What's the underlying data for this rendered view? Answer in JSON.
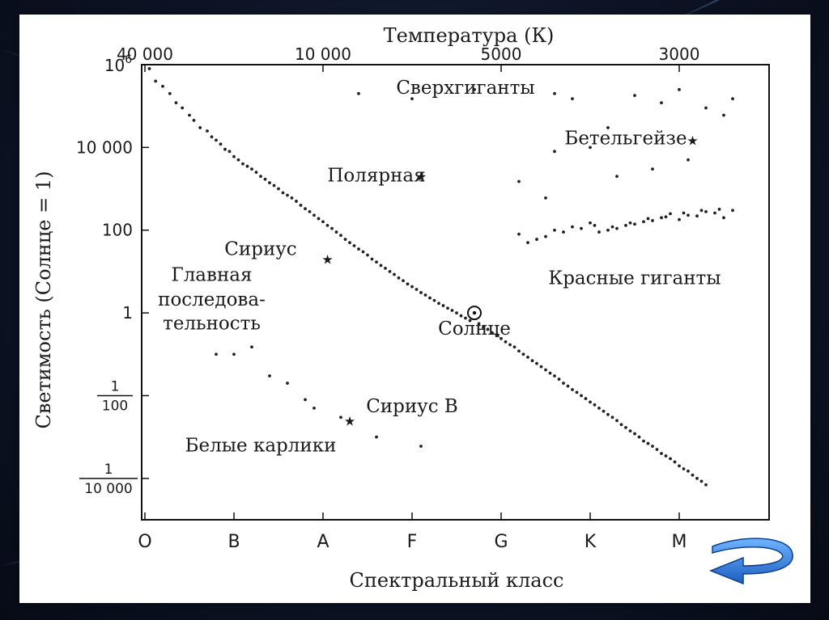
{
  "chart_data": {
    "type": "scatter",
    "title": "",
    "top_axis": {
      "label": "Температура (К)",
      "ticks": [
        {
          "label": "40 000",
          "class_pos": 0.0
        },
        {
          "label": "10 000",
          "class_pos": 2.0
        },
        {
          "label": "5000",
          "class_pos": 4.0
        },
        {
          "label": "3000",
          "class_pos": 6.0
        }
      ]
    },
    "xlabel": "Спектральный класс",
    "ylabel": "Светимость (Солнце = 1)",
    "x_categories": [
      "O",
      "B",
      "A",
      "F",
      "G",
      "K",
      "M"
    ],
    "x_range": [
      0,
      7
    ],
    "y_scale": "log",
    "y_range": [
      1e-05,
      1000000
    ],
    "y_ticks": [
      {
        "value": 1000000,
        "base": "10",
        "exp": "6"
      },
      {
        "value": 10000,
        "label": "10 000"
      },
      {
        "value": 100,
        "label": "100"
      },
      {
        "value": 1,
        "label": "1"
      },
      {
        "value": 0.01,
        "num": "1",
        "den": "100"
      },
      {
        "value": 0.0001,
        "num": "1",
        "den": "10 000"
      }
    ],
    "grid": false,
    "legend": "none",
    "labels": [
      {
        "text": "Сверхгиганты",
        "x": 3.6,
        "y": 200000
      },
      {
        "text": "Бетельгейзе",
        "x": 5.4,
        "y": 12000
      },
      {
        "text": "Полярная",
        "x": 2.6,
        "y": 1500
      },
      {
        "text": "Сириус",
        "x": 1.3,
        "y": 25
      },
      {
        "text": "Главная",
        "x": 0.75,
        "y": 6
      },
      {
        "text": "последова-",
        "x": 0.75,
        "y": 1.5
      },
      {
        "text": "тельность",
        "x": 0.75,
        "y": 0.4
      },
      {
        "text": "Красные гиганты",
        "x": 5.5,
        "y": 5
      },
      {
        "text": "Солнце",
        "x": 3.7,
        "y": 0.3
      },
      {
        "text": "Сириус B",
        "x": 3.0,
        "y": 0.004
      },
      {
        "text": "Белые карлики",
        "x": 1.3,
        "y": 0.00045
      }
    ],
    "named_stars": [
      {
        "name": "Бетельгейзе",
        "x": 6.15,
        "y": 15000,
        "symbol": "star"
      },
      {
        "name": "Полярная",
        "x": 3.1,
        "y": 2000,
        "symbol": "star"
      },
      {
        "name": "Сириус",
        "x": 2.05,
        "y": 20,
        "symbol": "star"
      },
      {
        "name": "Сириус B",
        "x": 2.3,
        "y": 0.0025,
        "symbol": "star"
      },
      {
        "name": "Солнце",
        "x": 3.7,
        "y": 1,
        "symbol": "sun"
      }
    ],
    "series": [
      {
        "group": "main-sequence",
        "points": [
          [
            0.05,
            800000
          ],
          [
            0.12,
            400000
          ],
          [
            0.2,
            300000
          ],
          [
            0.28,
            200000
          ],
          [
            0.35,
            120000
          ],
          [
            0.42,
            90000
          ],
          [
            0.5,
            60000
          ],
          [
            0.55,
            45000
          ],
          [
            0.62,
            30000
          ],
          [
            0.7,
            25000
          ],
          [
            0.75,
            18000
          ],
          [
            0.8,
            15000
          ],
          [
            0.85,
            12000
          ],
          [
            0.9,
            9000
          ],
          [
            0.95,
            8000
          ],
          [
            1.0,
            6000
          ],
          [
            1.05,
            5000
          ],
          [
            1.1,
            4000
          ],
          [
            1.15,
            3500
          ],
          [
            1.2,
            3000
          ],
          [
            1.25,
            2500
          ],
          [
            1.3,
            2000
          ],
          [
            1.35,
            1700
          ],
          [
            1.4,
            1400
          ],
          [
            1.45,
            1200
          ],
          [
            1.5,
            1000
          ],
          [
            1.55,
            800
          ],
          [
            1.6,
            700
          ],
          [
            1.65,
            600
          ],
          [
            1.7,
            500
          ],
          [
            1.75,
            400
          ],
          [
            1.8,
            330
          ],
          [
            1.85,
            280
          ],
          [
            1.9,
            230
          ],
          [
            1.95,
            190
          ],
          [
            2.0,
            160
          ],
          [
            2.05,
            130
          ],
          [
            2.1,
            110
          ],
          [
            2.15,
            90
          ],
          [
            2.2,
            75
          ],
          [
            2.25,
            60
          ],
          [
            2.3,
            50
          ],
          [
            2.35,
            42
          ],
          [
            2.4,
            35
          ],
          [
            2.45,
            30
          ],
          [
            2.5,
            25
          ],
          [
            2.55,
            20
          ],
          [
            2.6,
            17
          ],
          [
            2.65,
            14
          ],
          [
            2.7,
            12
          ],
          [
            2.75,
            10
          ],
          [
            2.8,
            8.5
          ],
          [
            2.85,
            7
          ],
          [
            2.9,
            6
          ],
          [
            2.95,
            5
          ],
          [
            3.0,
            4.3
          ],
          [
            3.05,
            3.7
          ],
          [
            3.1,
            3.1
          ],
          [
            3.15,
            2.7
          ],
          [
            3.2,
            2.3
          ],
          [
            3.25,
            2.0
          ],
          [
            3.3,
            1.7
          ],
          [
            3.35,
            1.5
          ],
          [
            3.4,
            1.3
          ],
          [
            3.45,
            1.15
          ],
          [
            3.5,
            1.0
          ],
          [
            3.55,
            0.85
          ],
          [
            3.6,
            0.75
          ],
          [
            3.65,
            0.65
          ],
          [
            3.75,
            0.55
          ],
          [
            3.8,
            0.45
          ],
          [
            3.85,
            0.4
          ],
          [
            3.9,
            0.33
          ],
          [
            3.95,
            0.28
          ],
          [
            4.0,
            0.24
          ],
          [
            4.05,
            0.2
          ],
          [
            4.1,
            0.17
          ],
          [
            4.15,
            0.15
          ],
          [
            4.2,
            0.12
          ],
          [
            4.25,
            0.1
          ],
          [
            4.3,
            0.085
          ],
          [
            4.35,
            0.07
          ],
          [
            4.4,
            0.06
          ],
          [
            4.45,
            0.05
          ],
          [
            4.5,
            0.042
          ],
          [
            4.55,
            0.035
          ],
          [
            4.6,
            0.03
          ],
          [
            4.65,
            0.025
          ],
          [
            4.7,
            0.02
          ],
          [
            4.75,
            0.017
          ],
          [
            4.8,
            0.014
          ],
          [
            4.85,
            0.012
          ],
          [
            4.9,
            0.01
          ],
          [
            4.95,
            0.0085
          ],
          [
            5.0,
            0.007
          ],
          [
            5.05,
            0.006
          ],
          [
            5.1,
            0.005
          ],
          [
            5.15,
            0.0042
          ],
          [
            5.2,
            0.0035
          ],
          [
            5.25,
            0.003
          ],
          [
            5.3,
            0.0025
          ],
          [
            5.35,
            0.002
          ],
          [
            5.4,
            0.0017
          ],
          [
            5.45,
            0.0014
          ],
          [
            5.5,
            0.0012
          ],
          [
            5.55,
            0.001
          ],
          [
            5.6,
            0.0008
          ],
          [
            5.65,
            0.0007
          ],
          [
            5.7,
            0.0006
          ],
          [
            5.75,
            0.0005
          ],
          [
            5.8,
            0.0004
          ],
          [
            5.85,
            0.00035
          ],
          [
            5.9,
            0.0003
          ],
          [
            5.95,
            0.00025
          ],
          [
            6.0,
            0.0002
          ],
          [
            6.05,
            0.00017
          ],
          [
            6.1,
            0.00015
          ],
          [
            6.15,
            0.00012
          ],
          [
            6.2,
            0.0001
          ],
          [
            6.25,
            8.5e-05
          ],
          [
            6.3,
            7e-05
          ]
        ]
      },
      {
        "group": "giants",
        "points": [
          [
            4.2,
            80
          ],
          [
            4.4,
            60
          ],
          [
            4.6,
            100
          ],
          [
            4.8,
            120
          ],
          [
            5.0,
            150
          ],
          [
            5.2,
            100
          ],
          [
            5.4,
            130
          ],
          [
            5.6,
            160
          ],
          [
            5.8,
            200
          ],
          [
            6.0,
            180
          ],
          [
            6.2,
            220
          ],
          [
            6.4,
            260
          ],
          [
            6.5,
            200
          ],
          [
            6.6,
            300
          ],
          [
            5.1,
            90
          ],
          [
            5.3,
            110
          ],
          [
            5.5,
            140
          ],
          [
            5.7,
            170
          ],
          [
            5.9,
            250
          ],
          [
            6.1,
            230
          ],
          [
            6.3,
            280
          ],
          [
            4.3,
            50
          ],
          [
            4.5,
            70
          ],
          [
            4.7,
            90
          ],
          [
            4.9,
            110
          ],
          [
            5.05,
            130
          ],
          [
            5.25,
            120
          ],
          [
            5.45,
            150
          ],
          [
            5.65,
            190
          ],
          [
            5.85,
            210
          ],
          [
            6.05,
            260
          ],
          [
            6.25,
            300
          ],
          [
            6.45,
            320
          ]
        ]
      },
      {
        "group": "supergiants",
        "points": [
          [
            2.4,
            200000
          ],
          [
            3.0,
            150000
          ],
          [
            3.7,
            250000
          ],
          [
            4.6,
            200000
          ],
          [
            4.8,
            150000
          ],
          [
            5.5,
            180000
          ],
          [
            5.8,
            120000
          ],
          [
            6.0,
            250000
          ],
          [
            6.3,
            90000
          ],
          [
            6.5,
            60000
          ],
          [
            6.6,
            150000
          ],
          [
            5.2,
            30000
          ],
          [
            5.0,
            10000
          ],
          [
            4.6,
            8000
          ],
          [
            4.2,
            1500
          ],
          [
            4.5,
            600
          ],
          [
            5.3,
            2000
          ],
          [
            5.7,
            3000
          ],
          [
            6.1,
            5000
          ]
        ]
      },
      {
        "group": "white-dwarfs",
        "points": [
          [
            1.4,
            0.03
          ],
          [
            1.6,
            0.02
          ],
          [
            1.8,
            0.008
          ],
          [
            1.9,
            0.005
          ],
          [
            2.2,
            0.003
          ],
          [
            2.6,
            0.001
          ],
          [
            3.1,
            0.0006
          ],
          [
            1.0,
            0.1
          ],
          [
            1.2,
            0.15
          ],
          [
            0.8,
            0.1
          ]
        ]
      }
    ]
  }
}
